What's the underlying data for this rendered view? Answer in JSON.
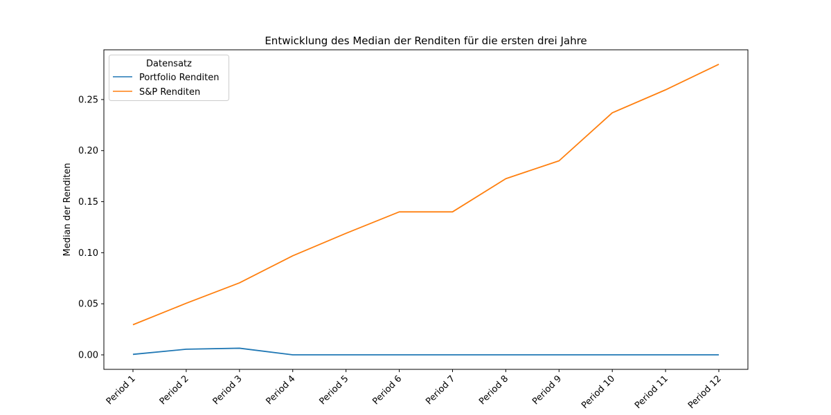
{
  "chart_data": {
    "type": "line",
    "title": "Entwicklung des Median der Renditen für die ersten drei Jahre",
    "xlabel": "",
    "ylabel": "Median der Renditen",
    "categories": [
      "Period 1",
      "Period 2",
      "Period 3",
      "Period 4",
      "Period 5",
      "Period 6",
      "Period 7",
      "Period 8",
      "Period 9",
      "Period 10",
      "Period 11",
      "Period 12"
    ],
    "series": [
      {
        "name": "Portfolio Renditen",
        "color": "#1f77b4",
        "values": [
          0.0005,
          0.0055,
          0.0065,
          0.0,
          0.0,
          0.0,
          0.0,
          0.0,
          0.0,
          0.0,
          0.0,
          0.0
        ]
      },
      {
        "name": "S&P Renditen",
        "color": "#ff7f0e",
        "values": [
          0.0295,
          0.0505,
          0.0705,
          0.097,
          0.119,
          0.14,
          0.14,
          0.1725,
          0.19,
          0.237,
          0.2595,
          0.2845
        ]
      }
    ],
    "yticks": [
      0.0,
      0.05,
      0.1,
      0.15,
      0.2,
      0.25
    ],
    "ytick_labels": [
      "0.00",
      "0.05",
      "0.10",
      "0.15",
      "0.20",
      "0.25"
    ],
    "ylim": [
      -0.0142,
      0.2987
    ],
    "grid": false,
    "legend": {
      "title": "Datensatz",
      "position": "upper-left"
    }
  }
}
